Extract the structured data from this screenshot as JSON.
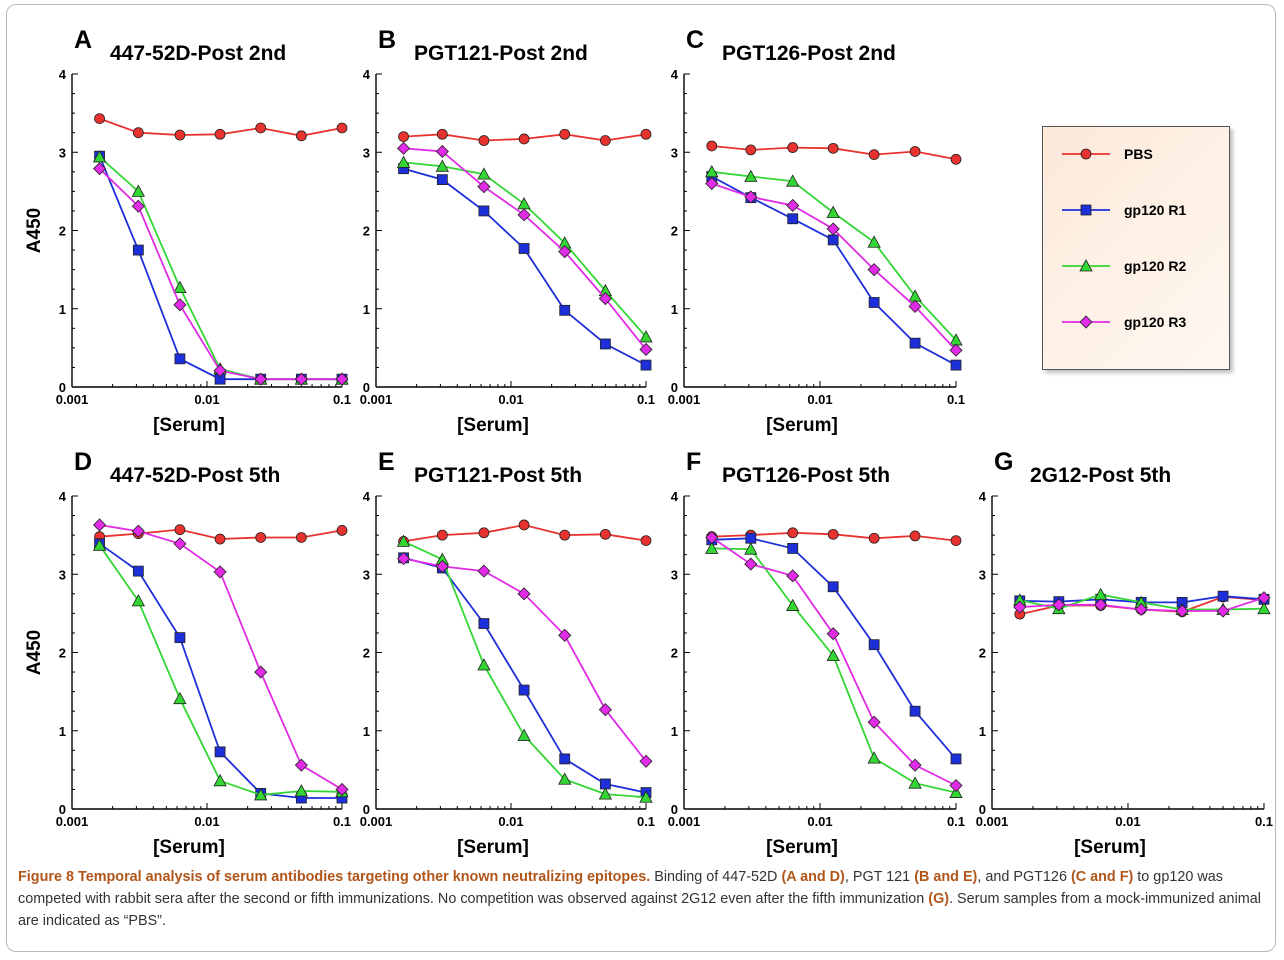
{
  "figure": {
    "panels": [
      {
        "letter": "A",
        "title": "447-52D-Post 2nd"
      },
      {
        "letter": "B",
        "title": "PGT121-Post 2nd"
      },
      {
        "letter": "C",
        "title": "PGT126-Post 2nd"
      },
      {
        "letter": "D",
        "title": "447-52D-Post 5th"
      },
      {
        "letter": "E",
        "title": "PGT121-Post 5th"
      },
      {
        "letter": "F",
        "title": "PGT126-Post 5th"
      },
      {
        "letter": "G",
        "title": "2G12-Post 5th"
      }
    ],
    "ylabel": "A450",
    "xlabel": "[Serum]",
    "xticks": [
      "0.001",
      "0.01",
      "0.1"
    ],
    "yticks": [
      "0",
      "1",
      "2",
      "3",
      "4"
    ],
    "legend": [
      "PBS",
      "gp120 R1",
      "gp120 R2",
      "gp120 R3"
    ],
    "colors": {
      "PBS": "#e8322f",
      "gp120 R1": "#1d2fd8",
      "gp120 R2": "#33d633",
      "gp120 R3": "#e12be6"
    }
  },
  "caption": {
    "title": "Figure 8 Temporal analysis of serum antibodies targeting other known neutralizing epitopes.",
    "s1": " Binding of 447-52D ",
    "b1": "(A and D)",
    "s2": ", PGT 121 ",
    "b2": "(B and E)",
    "s3": ", and PGT126 ",
    "b3": "(C and F)",
    "s4": " to gp120 was competed with rabbit sera after the second or fifth immunizations. No competition was observed against 2G12 even after the fifth immunization ",
    "b4": "(G)",
    "s5": ". Serum samples from a mock-immunized animal are indicated as “PBS”."
  },
  "chart_data": [
    {
      "type": "line",
      "title": "447-52D-Post 2nd",
      "panel": "A",
      "xlabel": "[Serum]",
      "ylabel": "A450",
      "xscale": "log",
      "xlim": [
        0.001,
        0.1
      ],
      "ylim": [
        0,
        4
      ],
      "x": [
        0.0016,
        0.0031,
        0.0063,
        0.0125,
        0.025,
        0.05,
        0.1
      ],
      "series": [
        {
          "name": "PBS",
          "values": [
            3.43,
            3.25,
            3.22,
            3.23,
            3.31,
            3.21,
            3.31
          ]
        },
        {
          "name": "gp120 R1",
          "values": [
            2.95,
            1.75,
            0.36,
            0.1,
            0.1,
            0.1,
            0.1
          ]
        },
        {
          "name": "gp120 R2",
          "values": [
            2.94,
            2.5,
            1.27,
            0.23,
            0.1,
            0.1,
            0.1
          ]
        },
        {
          "name": "gp120 R3",
          "values": [
            2.79,
            2.31,
            1.05,
            0.21,
            0.1,
            0.1,
            0.1
          ]
        }
      ]
    },
    {
      "type": "line",
      "title": "PGT121-Post 2nd",
      "panel": "B",
      "xlabel": "[Serum]",
      "ylabel": "",
      "xscale": "log",
      "xlim": [
        0.001,
        0.1
      ],
      "ylim": [
        0,
        4
      ],
      "x": [
        0.0016,
        0.0031,
        0.0063,
        0.0125,
        0.025,
        0.05,
        0.1
      ],
      "series": [
        {
          "name": "PBS",
          "values": [
            3.2,
            3.23,
            3.15,
            3.17,
            3.23,
            3.15,
            3.23
          ]
        },
        {
          "name": "gp120 R1",
          "values": [
            2.79,
            2.65,
            2.25,
            1.77,
            0.98,
            0.55,
            0.28
          ]
        },
        {
          "name": "gp120 R2",
          "values": [
            2.87,
            2.82,
            2.72,
            2.34,
            1.84,
            1.23,
            0.64
          ]
        },
        {
          "name": "gp120 R3",
          "values": [
            3.05,
            3.01,
            2.56,
            2.2,
            1.73,
            1.13,
            0.48
          ]
        }
      ]
    },
    {
      "type": "line",
      "title": "PGT126-Post 2nd",
      "panel": "C",
      "xlabel": "[Serum]",
      "ylabel": "",
      "xscale": "log",
      "xlim": [
        0.001,
        0.1
      ],
      "ylim": [
        0,
        4
      ],
      "x": [
        0.0016,
        0.0031,
        0.0063,
        0.0125,
        0.025,
        0.05,
        0.1
      ],
      "series": [
        {
          "name": "PBS",
          "values": [
            3.08,
            3.03,
            3.06,
            3.05,
            2.97,
            3.01,
            2.91
          ]
        },
        {
          "name": "gp120 R1",
          "values": [
            2.69,
            2.42,
            2.15,
            1.88,
            1.08,
            0.56,
            0.28
          ]
        },
        {
          "name": "gp120 R2",
          "values": [
            2.75,
            2.69,
            2.63,
            2.23,
            1.85,
            1.16,
            0.6
          ]
        },
        {
          "name": "gp120 R3",
          "values": [
            2.6,
            2.43,
            2.32,
            2.02,
            1.5,
            1.03,
            0.47
          ]
        }
      ]
    },
    {
      "type": "line",
      "title": "447-52D-Post 5th",
      "panel": "D",
      "xlabel": "[Serum]",
      "ylabel": "A450",
      "xscale": "log",
      "xlim": [
        0.001,
        0.1
      ],
      "ylim": [
        0,
        4
      ],
      "x": [
        0.0016,
        0.0031,
        0.0063,
        0.0125,
        0.025,
        0.05,
        0.1
      ],
      "series": [
        {
          "name": "PBS",
          "values": [
            3.48,
            3.52,
            3.57,
            3.45,
            3.47,
            3.47,
            3.56
          ]
        },
        {
          "name": "gp120 R1",
          "values": [
            3.39,
            3.04,
            2.19,
            0.73,
            0.2,
            0.14,
            0.14
          ]
        },
        {
          "name": "gp120 R2",
          "values": [
            3.37,
            2.66,
            1.41,
            0.36,
            0.18,
            0.23,
            0.22
          ]
        },
        {
          "name": "gp120 R3",
          "values": [
            3.63,
            3.55,
            3.39,
            3.03,
            1.75,
            0.56,
            0.25
          ]
        }
      ]
    },
    {
      "type": "line",
      "title": "PGT121-Post 5th",
      "panel": "E",
      "xlabel": "[Serum]",
      "ylabel": "",
      "xscale": "log",
      "xlim": [
        0.001,
        0.1
      ],
      "ylim": [
        0,
        4
      ],
      "x": [
        0.0016,
        0.0031,
        0.0063,
        0.0125,
        0.025,
        0.05,
        0.1
      ],
      "series": [
        {
          "name": "PBS",
          "values": [
            3.42,
            3.5,
            3.53,
            3.63,
            3.5,
            3.51,
            3.43
          ]
        },
        {
          "name": "gp120 R1",
          "values": [
            3.21,
            3.08,
            2.37,
            1.52,
            0.64,
            0.32,
            0.21
          ]
        },
        {
          "name": "gp120 R2",
          "values": [
            3.42,
            3.19,
            1.84,
            0.94,
            0.38,
            0.19,
            0.15
          ]
        },
        {
          "name": "gp120 R3",
          "values": [
            3.2,
            3.1,
            3.04,
            2.75,
            2.22,
            1.27,
            0.61
          ]
        }
      ]
    },
    {
      "type": "line",
      "title": "PGT126-Post 5th",
      "panel": "F",
      "xlabel": "[Serum]",
      "ylabel": "",
      "xscale": "log",
      "xlim": [
        0.001,
        0.1
      ],
      "ylim": [
        0,
        4
      ],
      "x": [
        0.0016,
        0.0031,
        0.0063,
        0.0125,
        0.025,
        0.05,
        0.1
      ],
      "series": [
        {
          "name": "PBS",
          "values": [
            3.48,
            3.5,
            3.53,
            3.51,
            3.46,
            3.49,
            3.43
          ]
        },
        {
          "name": "gp120 R1",
          "values": [
            3.44,
            3.46,
            3.33,
            2.84,
            2.1,
            1.25,
            0.64
          ]
        },
        {
          "name": "gp120 R2",
          "values": [
            3.33,
            3.32,
            2.6,
            1.96,
            0.65,
            0.33,
            0.21
          ]
        },
        {
          "name": "gp120 R3",
          "values": [
            3.47,
            3.13,
            2.98,
            2.24,
            1.11,
            0.56,
            0.3
          ]
        }
      ]
    },
    {
      "type": "line",
      "title": "2G12-Post 5th",
      "panel": "G",
      "xlabel": "[Serum]",
      "ylabel": "",
      "xscale": "log",
      "xlim": [
        0.001,
        0.1
      ],
      "ylim": [
        0,
        4
      ],
      "x": [
        0.0016,
        0.0031,
        0.0063,
        0.0125,
        0.025,
        0.05,
        0.1
      ],
      "series": [
        {
          "name": "PBS",
          "values": [
            2.49,
            2.6,
            2.6,
            2.55,
            2.52,
            2.71,
            2.67
          ]
        },
        {
          "name": "gp120 R1",
          "values": [
            2.66,
            2.65,
            2.68,
            2.64,
            2.64,
            2.72,
            2.68
          ]
        },
        {
          "name": "gp120 R2",
          "values": [
            2.67,
            2.56,
            2.74,
            2.64,
            2.55,
            2.55,
            2.56
          ]
        },
        {
          "name": "gp120 R3",
          "values": [
            2.58,
            2.61,
            2.61,
            2.55,
            2.53,
            2.53,
            2.7
          ]
        }
      ]
    }
  ]
}
